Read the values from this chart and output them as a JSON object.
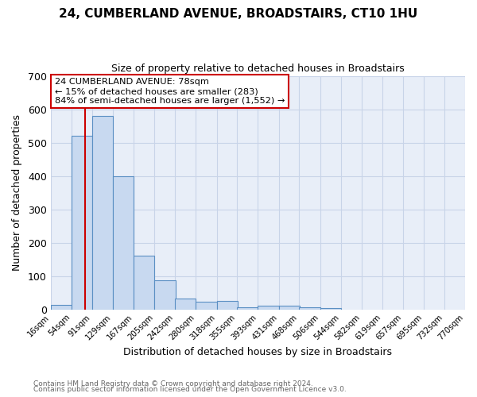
{
  "title": "24, CUMBERLAND AVENUE, BROADSTAIRS, CT10 1HU",
  "subtitle": "Size of property relative to detached houses in Broadstairs",
  "xlabel": "Distribution of detached houses by size in Broadstairs",
  "ylabel": "Number of detached properties",
  "footnote1": "Contains HM Land Registry data © Crown copyright and database right 2024.",
  "footnote2": "Contains public sector information licensed under the Open Government Licence v3.0.",
  "bar_left_edges": [
    16,
    54,
    91,
    129,
    167,
    205,
    242,
    280,
    318,
    355,
    393,
    431,
    468,
    506,
    544,
    582,
    619,
    657,
    695,
    732
  ],
  "bar_heights": [
    13,
    520,
    580,
    400,
    162,
    87,
    33,
    22,
    24,
    5,
    12,
    10,
    6,
    3,
    0,
    0,
    0,
    0,
    0,
    0
  ],
  "bin_width": 38,
  "bar_color": "#c8d9f0",
  "bar_edge_color": "#5a8fc3",
  "property_line_x": 78,
  "property_line_color": "#cc0000",
  "ylim": [
    0,
    700
  ],
  "yticks": [
    0,
    100,
    200,
    300,
    400,
    500,
    600,
    700
  ],
  "xtick_labels": [
    "16sqm",
    "54sqm",
    "91sqm",
    "129sqm",
    "167sqm",
    "205sqm",
    "242sqm",
    "280sqm",
    "318sqm",
    "355sqm",
    "393sqm",
    "431sqm",
    "468sqm",
    "506sqm",
    "544sqm",
    "582sqm",
    "619sqm",
    "657sqm",
    "695sqm",
    "732sqm",
    "770sqm"
  ],
  "annotation_text": "24 CUMBERLAND AVENUE: 78sqm\n← 15% of detached houses are smaller (283)\n84% of semi-detached houses are larger (1,552) →",
  "annotation_box_color": "#ffffff",
  "annotation_box_edgecolor": "#cc0000",
  "grid_color": "#c8d4e8",
  "plot_bg_color": "#e8eef8",
  "fig_bg_color": "#ffffff"
}
